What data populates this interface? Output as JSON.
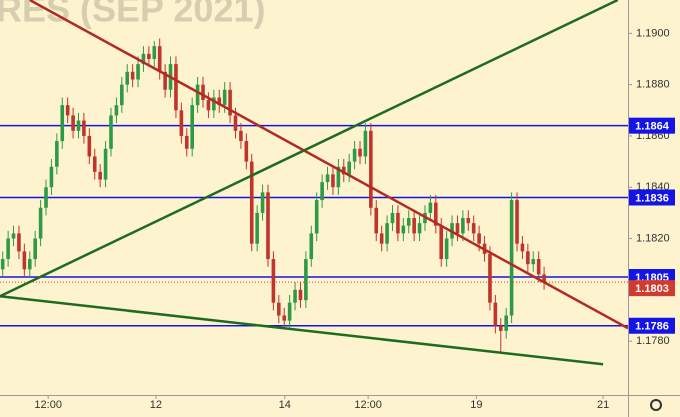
{
  "chart_data": {
    "type": "candlestick",
    "title": "RES (SEP 2021)",
    "xlim": [
      0,
      116
    ],
    "xticks": [
      {
        "value": 8.9,
        "label": "12:00"
      },
      {
        "value": 28.8,
        "label": "12"
      },
      {
        "value": 52.6,
        "label": "14"
      },
      {
        "value": 68,
        "label": "12:00"
      },
      {
        "value": 88,
        "label": "19"
      },
      {
        "value": 111.4,
        "label": "21"
      }
    ],
    "ylim": [
      1.1759,
      1.1913
    ],
    "yticks": [
      {
        "value": 1.178,
        "label": "1.1780"
      },
      {
        "value": 1.18,
        "label": "1.1800"
      },
      {
        "value": 1.182,
        "label": "1.1820"
      },
      {
        "value": 1.184,
        "label": "1.1840"
      },
      {
        "value": 1.186,
        "label": "1.1860"
      },
      {
        "value": 1.188,
        "label": "1.1880"
      },
      {
        "value": 1.19,
        "label": "1.1900"
      }
    ],
    "up_color": "#2f9a46",
    "down_color": "#c0342b",
    "open": [
      1.1808,
      1.1812,
      1.182,
      1.1822,
      1.1815,
      1.1808,
      1.1812,
      1.182,
      1.1832,
      1.184,
      1.1848,
      1.1858,
      1.1872,
      1.1868,
      1.1862,
      1.1866,
      1.186,
      1.1852,
      1.1846,
      1.1843,
      1.1855,
      1.1868,
      1.1872,
      1.188,
      1.1885,
      1.1882,
      1.1888,
      1.1892,
      1.189,
      1.1895,
      1.1885,
      1.1878,
      1.1888,
      1.187,
      1.186,
      1.1855,
      1.1872,
      1.188,
      1.1874,
      1.187,
      1.1875,
      1.1872,
      1.1878,
      1.1868,
      1.1862,
      1.1858,
      1.185,
      1.1818,
      1.183,
      1.1838,
      1.1812,
      1.1795,
      1.179,
      1.1788,
      1.1795,
      1.18,
      1.1796,
      1.1812,
      1.1822,
      1.1835,
      1.1842,
      1.1845,
      1.184,
      1.1848,
      1.1845,
      1.185,
      1.1855,
      1.1852,
      1.1862,
      1.1832,
      1.1822,
      1.1818,
      1.1826,
      1.183,
      1.1822,
      1.1825,
      1.1828,
      1.1822,
      1.1826,
      1.183,
      1.1834,
      1.1825,
      1.1812,
      1.182,
      1.1826,
      1.1822,
      1.1828,
      1.1826,
      1.1822,
      1.1818,
      1.1814,
      1.1795,
      1.1786,
      1.1784,
      1.179,
      1.1835,
      1.1818,
      1.1815,
      1.181,
      1.1812,
      1.1806
    ],
    "high": [
      1.1815,
      1.1823,
      1.1825,
      1.1825,
      1.1818,
      1.1815,
      1.1823,
      1.1835,
      1.1843,
      1.1851,
      1.1861,
      1.1875,
      1.1875,
      1.1871,
      1.1869,
      1.1869,
      1.1863,
      1.1855,
      1.1849,
      1.1858,
      1.1871,
      1.1875,
      1.1883,
      1.1888,
      1.1888,
      1.1891,
      1.1895,
      1.1895,
      1.1897,
      1.1898,
      1.1888,
      1.1891,
      1.1891,
      1.1873,
      1.1863,
      1.1875,
      1.1883,
      1.1883,
      1.1877,
      1.1878,
      1.1878,
      1.1881,
      1.1881,
      1.1871,
      1.1865,
      1.1861,
      1.1853,
      1.1833,
      1.1841,
      1.1841,
      1.1815,
      1.1798,
      1.1793,
      1.1798,
      1.1803,
      1.1803,
      1.1815,
      1.1825,
      1.1838,
      1.1845,
      1.1848,
      1.1848,
      1.1851,
      1.1851,
      1.1853,
      1.1858,
      1.1858,
      1.1865,
      1.1865,
      1.1835,
      1.1825,
      1.1829,
      1.1833,
      1.1833,
      1.1828,
      1.1831,
      1.1831,
      1.1829,
      1.1833,
      1.1837,
      1.1837,
      1.1828,
      1.1823,
      1.1829,
      1.1829,
      1.1831,
      1.1831,
      1.1829,
      1.1825,
      1.1821,
      1.1817,
      1.1798,
      1.1789,
      1.1793,
      1.1838,
      1.1838,
      1.1821,
      1.1818,
      1.1815,
      1.1815,
      1.1809
    ],
    "low": [
      1.1805,
      1.1809,
      1.1817,
      1.1812,
      1.1805,
      1.1805,
      1.1809,
      1.1817,
      1.1829,
      1.1837,
      1.1845,
      1.1855,
      1.1865,
      1.1859,
      1.1859,
      1.1857,
      1.1849,
      1.1843,
      1.184,
      1.184,
      1.1852,
      1.1865,
      1.1869,
      1.1877,
      1.1879,
      1.1879,
      1.1885,
      1.1887,
      1.1887,
      1.1882,
      1.1875,
      1.1875,
      1.1867,
      1.1857,
      1.1852,
      1.1852,
      1.1869,
      1.1871,
      1.1867,
      1.1867,
      1.1869,
      1.1869,
      1.1865,
      1.1859,
      1.1855,
      1.1847,
      1.1815,
      1.1815,
      1.1827,
      1.1809,
      1.1792,
      1.1787,
      1.1785,
      1.1785,
      1.1792,
      1.1793,
      1.1793,
      1.1809,
      1.1819,
      1.1832,
      1.1839,
      1.1837,
      1.1837,
      1.1842,
      1.1842,
      1.1847,
      1.1849,
      1.1849,
      1.1829,
      1.1819,
      1.1815,
      1.1815,
      1.1823,
      1.1819,
      1.1819,
      1.1822,
      1.1819,
      1.1819,
      1.1823,
      1.1827,
      1.1822,
      1.1809,
      1.1809,
      1.1817,
      1.1819,
      1.1819,
      1.1823,
      1.1819,
      1.1815,
      1.1811,
      1.1792,
      1.1783,
      1.1775,
      1.1781,
      1.1787,
      1.1815,
      1.1812,
      1.1807,
      1.1807,
      1.1803,
      1.18
    ],
    "close": [
      1.1812,
      1.182,
      1.1822,
      1.1815,
      1.1808,
      1.1812,
      1.182,
      1.1832,
      1.184,
      1.1848,
      1.1858,
      1.1872,
      1.1868,
      1.1862,
      1.1866,
      1.186,
      1.1852,
      1.1846,
      1.1843,
      1.1855,
      1.1868,
      1.1872,
      1.188,
      1.1885,
      1.1882,
      1.1888,
      1.1892,
      1.189,
      1.1895,
      1.1885,
      1.1878,
      1.1888,
      1.187,
      1.186,
      1.1855,
      1.1872,
      1.188,
      1.1874,
      1.187,
      1.1875,
      1.1872,
      1.1878,
      1.1868,
      1.1862,
      1.1858,
      1.185,
      1.1818,
      1.183,
      1.1838,
      1.1812,
      1.1795,
      1.179,
      1.1788,
      1.1795,
      1.18,
      1.1796,
      1.1812,
      1.1822,
      1.1835,
      1.1842,
      1.1845,
      1.184,
      1.1848,
      1.1845,
      1.185,
      1.1855,
      1.1852,
      1.1862,
      1.1832,
      1.1822,
      1.1818,
      1.1826,
      1.183,
      1.1822,
      1.1825,
      1.1828,
      1.1822,
      1.1826,
      1.183,
      1.1834,
      1.1825,
      1.1812,
      1.182,
      1.1826,
      1.1822,
      1.1828,
      1.1826,
      1.1822,
      1.1818,
      1.1814,
      1.1795,
      1.1786,
      1.1784,
      1.179,
      1.1835,
      1.1818,
      1.1815,
      1.181,
      1.1812,
      1.1806,
      1.1803
    ],
    "price_lines": [
      {
        "value": 1.1864,
        "color": "#1414e6"
      },
      {
        "value": 1.1836,
        "color": "#1414e6"
      },
      {
        "value": 1.1805,
        "color": "#1414e6"
      },
      {
        "value": 1.1786,
        "color": "#1414e6"
      }
    ],
    "last_price": {
      "value": 1.1803,
      "color": "#d23a2e"
    },
    "trendlines": [
      {
        "color": "#b22a22",
        "x": [
          5.5,
          116
        ],
        "y": [
          1.1913,
          1.1785
        ]
      },
      {
        "color": "#1f6b1f",
        "x": [
          0,
          114.1
        ],
        "y": [
          1.17975,
          1.1913
        ]
      },
      {
        "color": "#1f6b1f",
        "x": [
          0,
          111.4
        ],
        "y": [
          1.17975,
          1.1771
        ]
      }
    ]
  }
}
